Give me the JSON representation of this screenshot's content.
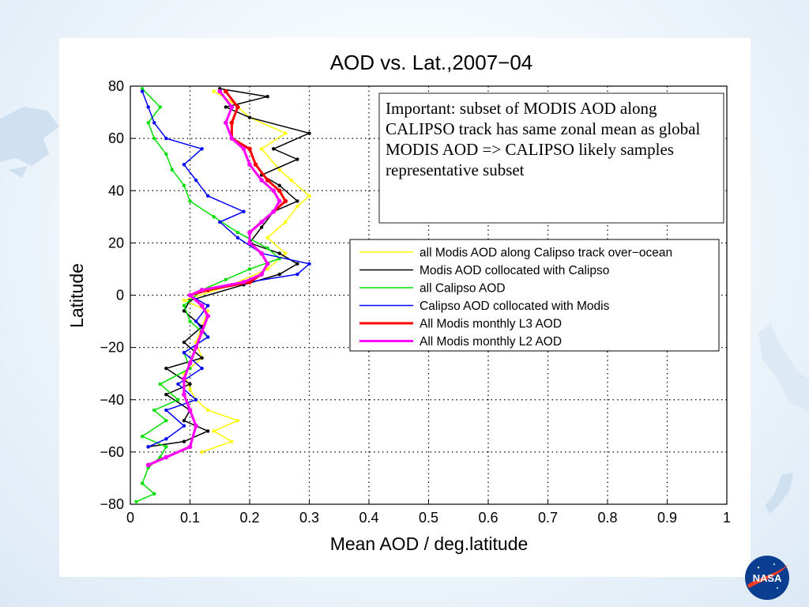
{
  "slide": {
    "logo_text": "NASA",
    "colors": {
      "background": "#eaf3fb",
      "map_shapes": "#cfe0f0",
      "logo_blue": "#0b3d91",
      "logo_red": "#fc3d21"
    }
  },
  "chart_data": {
    "type": "line",
    "title": "AOD vs. Lat.,2007−04",
    "xlabel": "Mean AOD / deg.latitude",
    "ylabel": "Latitude",
    "xlim": [
      0,
      1
    ],
    "ylim": [
      -80,
      80
    ],
    "xticks": [
      0,
      0.1,
      0.2,
      0.3,
      0.4,
      0.5,
      0.6,
      0.7,
      0.8,
      0.9,
      1
    ],
    "xtick_labels": [
      "0",
      "0.1",
      "0.2",
      "0.3",
      "0.4",
      "0.5",
      "0.6",
      "0.7",
      "0.8",
      "0.9",
      "1"
    ],
    "yticks": [
      -80,
      -60,
      -40,
      -20,
      0,
      20,
      40,
      60,
      80
    ],
    "ytick_labels": [
      "−80",
      "−60",
      "−40",
      "−20",
      "0",
      "20",
      "40",
      "60",
      "80"
    ],
    "grid": true,
    "legend_position": "right",
    "annotation": "Important: subset of MODIS AOD along CALIPSO track has same zonal mean as global MODIS AOD => CALIPSO likely samples representative subset",
    "series": [
      {
        "name": "all Modis AOD along Calipso track over−ocean",
        "color": "#ffff00",
        "points": [
          [
            0.12,
            -60
          ],
          [
            0.17,
            -56
          ],
          [
            0.14,
            -52
          ],
          [
            0.18,
            -48
          ],
          [
            0.13,
            -44
          ],
          [
            0.11,
            -40
          ],
          [
            0.1,
            -36
          ],
          [
            0.09,
            -30
          ],
          [
            0.12,
            -24
          ],
          [
            0.11,
            -18
          ],
          [
            0.12,
            -12
          ],
          [
            0.13,
            -6
          ],
          [
            0.09,
            -2
          ],
          [
            0.17,
            4
          ],
          [
            0.23,
            10
          ],
          [
            0.26,
            16
          ],
          [
            0.23,
            22
          ],
          [
            0.26,
            28
          ],
          [
            0.28,
            34
          ],
          [
            0.3,
            38
          ],
          [
            0.27,
            44
          ],
          [
            0.25,
            48
          ],
          [
            0.22,
            56
          ],
          [
            0.26,
            62
          ],
          [
            0.2,
            68
          ],
          [
            0.17,
            74
          ],
          [
            0.14,
            78
          ]
        ]
      },
      {
        "name": "Modis AOD collocated with Calipso",
        "color": "#000000",
        "points": [
          [
            0.03,
            -58
          ],
          [
            0.09,
            -56
          ],
          [
            0.13,
            -52
          ],
          [
            0.09,
            -48
          ],
          [
            0.1,
            -44
          ],
          [
            0.06,
            -38
          ],
          [
            0.1,
            -34
          ],
          [
            0.06,
            -28
          ],
          [
            0.12,
            -24
          ],
          [
            0.09,
            -18
          ],
          [
            0.12,
            -12
          ],
          [
            0.09,
            -6
          ],
          [
            0.1,
            -2
          ],
          [
            0.19,
            4
          ],
          [
            0.25,
            8
          ],
          [
            0.28,
            12
          ],
          [
            0.25,
            16
          ],
          [
            0.2,
            20
          ],
          [
            0.22,
            26
          ],
          [
            0.24,
            32
          ],
          [
            0.28,
            36
          ],
          [
            0.25,
            42
          ],
          [
            0.22,
            46
          ],
          [
            0.28,
            52
          ],
          [
            0.24,
            56
          ],
          [
            0.3,
            62
          ],
          [
            0.2,
            68
          ],
          [
            0.16,
            72
          ],
          [
            0.23,
            76
          ],
          [
            0.15,
            79
          ]
        ]
      },
      {
        "name": "all Calipso AOD",
        "color": "#00e000",
        "points": [
          [
            0.01,
            -79
          ],
          [
            0.04,
            -76
          ],
          [
            0.02,
            -72
          ],
          [
            0.03,
            -66
          ],
          [
            0.05,
            -62
          ],
          [
            0.06,
            -58
          ],
          [
            0.02,
            -54
          ],
          [
            0.06,
            -48
          ],
          [
            0.04,
            -44
          ],
          [
            0.08,
            -40
          ],
          [
            0.05,
            -34
          ],
          [
            0.1,
            -28
          ],
          [
            0.09,
            -22
          ],
          [
            0.13,
            -16
          ],
          [
            0.1,
            -10
          ],
          [
            0.09,
            -4
          ],
          [
            0.12,
            2
          ],
          [
            0.16,
            6
          ],
          [
            0.2,
            10
          ],
          [
            0.25,
            14
          ],
          [
            0.23,
            18
          ],
          [
            0.18,
            24
          ],
          [
            0.14,
            30
          ],
          [
            0.1,
            36
          ],
          [
            0.09,
            42
          ],
          [
            0.07,
            48
          ],
          [
            0.06,
            54
          ],
          [
            0.04,
            60
          ],
          [
            0.03,
            66
          ],
          [
            0.05,
            72
          ],
          [
            0.02,
            79
          ]
        ]
      },
      {
        "name": "Calipso AOD collocated with Modis",
        "color": "#0000ff",
        "points": [
          [
            0.03,
            -58
          ],
          [
            0.06,
            -55
          ],
          [
            0.09,
            -50
          ],
          [
            0.06,
            -44
          ],
          [
            0.11,
            -40
          ],
          [
            0.08,
            -34
          ],
          [
            0.12,
            -28
          ],
          [
            0.09,
            -22
          ],
          [
            0.13,
            -16
          ],
          [
            0.11,
            -10
          ],
          [
            0.13,
            -4
          ],
          [
            0.1,
            0
          ],
          [
            0.17,
            4
          ],
          [
            0.28,
            8
          ],
          [
            0.3,
            12
          ],
          [
            0.22,
            16
          ],
          [
            0.18,
            22
          ],
          [
            0.15,
            28
          ],
          [
            0.19,
            32
          ],
          [
            0.13,
            38
          ],
          [
            0.11,
            44
          ],
          [
            0.09,
            50
          ],
          [
            0.12,
            56
          ],
          [
            0.06,
            60
          ],
          [
            0.04,
            66
          ],
          [
            0.03,
            72
          ],
          [
            0.02,
            78
          ]
        ]
      },
      {
        "name": "All Modis monthly L3 AOD",
        "color": "#ff0000",
        "points": [
          [
            0.03,
            -65
          ],
          [
            0.06,
            -62
          ],
          [
            0.1,
            -58
          ],
          [
            0.11,
            -50
          ],
          [
            0.1,
            -44
          ],
          [
            0.09,
            -38
          ],
          [
            0.09,
            -32
          ],
          [
            0.1,
            -26
          ],
          [
            0.11,
            -20
          ],
          [
            0.12,
            -14
          ],
          [
            0.13,
            -8
          ],
          [
            0.12,
            -4
          ],
          [
            0.1,
            0
          ],
          [
            0.13,
            2
          ],
          [
            0.2,
            5
          ],
          [
            0.22,
            8
          ],
          [
            0.23,
            12
          ],
          [
            0.22,
            16
          ],
          [
            0.2,
            20
          ],
          [
            0.2,
            24
          ],
          [
            0.22,
            28
          ],
          [
            0.24,
            32
          ],
          [
            0.26,
            36
          ],
          [
            0.25,
            40
          ],
          [
            0.23,
            44
          ],
          [
            0.21,
            50
          ],
          [
            0.2,
            56
          ],
          [
            0.17,
            60
          ],
          [
            0.17,
            66
          ],
          [
            0.18,
            72
          ],
          [
            0.16,
            78
          ]
        ]
      },
      {
        "name": "All Modis monthly L2 AOD",
        "color": "#ff00ff",
        "points": [
          [
            0.03,
            -65
          ],
          [
            0.06,
            -62
          ],
          [
            0.1,
            -58
          ],
          [
            0.11,
            -50
          ],
          [
            0.1,
            -44
          ],
          [
            0.09,
            -38
          ],
          [
            0.09,
            -32
          ],
          [
            0.1,
            -26
          ],
          [
            0.11,
            -20
          ],
          [
            0.12,
            -14
          ],
          [
            0.13,
            -8
          ],
          [
            0.12,
            -4
          ],
          [
            0.1,
            0
          ],
          [
            0.12,
            2
          ],
          [
            0.19,
            5
          ],
          [
            0.22,
            8
          ],
          [
            0.23,
            12
          ],
          [
            0.22,
            16
          ],
          [
            0.2,
            20
          ],
          [
            0.2,
            24
          ],
          [
            0.22,
            28
          ],
          [
            0.24,
            32
          ],
          [
            0.25,
            36
          ],
          [
            0.24,
            40
          ],
          [
            0.22,
            44
          ],
          [
            0.2,
            50
          ],
          [
            0.19,
            56
          ],
          [
            0.17,
            60
          ],
          [
            0.16,
            66
          ],
          [
            0.17,
            72
          ],
          [
            0.15,
            78
          ]
        ]
      }
    ]
  }
}
